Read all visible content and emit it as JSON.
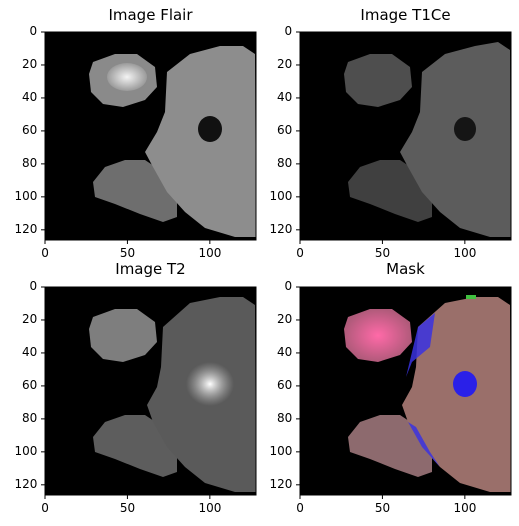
{
  "panels": [
    {
      "title": "Image Flair"
    },
    {
      "title": "Image T1Ce"
    },
    {
      "title": "Image T2"
    },
    {
      "title": "Mask"
    }
  ],
  "axes": {
    "y_ticks": [
      "0",
      "20",
      "40",
      "60",
      "80",
      "100",
      "120"
    ],
    "x_ticks": [
      "0",
      "50",
      "100"
    ]
  },
  "colors": {
    "background": "#000000",
    "mask_tissue": "#9a6f6a",
    "mask_tumor_pink": "#e0508a",
    "mask_edema_blue": "#3a32e0",
    "mask_green": "#40c040"
  }
}
